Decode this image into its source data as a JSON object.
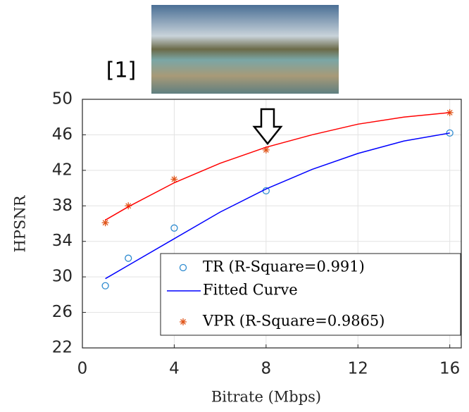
{
  "chart_data": {
    "type": "line",
    "annotation": "[1]",
    "xlabel": "Bitrate (Mbps)",
    "ylabel": "HPSNR",
    "xlim": [
      0,
      16.5
    ],
    "ylim": [
      22,
      50
    ],
    "xticks": [
      0,
      4,
      8,
      12,
      16
    ],
    "yticks": [
      22,
      26,
      30,
      34,
      38,
      42,
      46,
      50
    ],
    "grid": true,
    "series": [
      {
        "name": "TR (R-Square=0.991)",
        "color": "#2e8bd0",
        "marker": "circle",
        "x": [
          1,
          2,
          4,
          8,
          16
        ],
        "values": [
          29.0,
          32.1,
          35.5,
          39.7,
          46.2
        ]
      },
      {
        "name": "Fitted Curve",
        "color": "#0000ff",
        "marker": "none",
        "x": [
          1,
          2,
          4,
          6,
          8,
          10,
          12,
          14,
          16
        ],
        "values": [
          29.8,
          31.3,
          34.3,
          37.3,
          39.9,
          42.1,
          43.9,
          45.3,
          46.2
        ]
      },
      {
        "name": "VPR (R-Square=0.9865)",
        "color": "#e0561b",
        "marker": "star",
        "x": [
          1,
          2,
          4,
          8,
          16
        ],
        "values": [
          36.1,
          38.0,
          41.0,
          44.3,
          48.5
        ]
      },
      {
        "color": "#ff0000",
        "marker": "none",
        "x": [
          1,
          2,
          4,
          6,
          8,
          10,
          12,
          14,
          16
        ],
        "values": [
          36.4,
          37.9,
          40.6,
          42.8,
          44.6,
          46.0,
          47.2,
          48.0,
          48.5
        ]
      }
    ]
  }
}
